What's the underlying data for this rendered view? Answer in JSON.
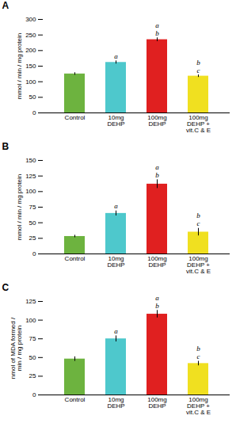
{
  "chart_data": [
    {
      "type": "bar",
      "title": "A",
      "ylabel": "mmol / min / mg protein",
      "categories": [
        "Control",
        "10mg\nDEHP",
        "100mg\nDEHP",
        "100mg\nDEHP +\nvit.C & E"
      ],
      "values": [
        125,
        162,
        235,
        118
      ],
      "errors": [
        4,
        5,
        6,
        4
      ],
      "annotations": [
        [],
        [
          "a"
        ],
        [
          "a",
          "b"
        ],
        [
          "b",
          "c"
        ]
      ],
      "colors": [
        "#6db33f",
        "#4ec8cc",
        "#e02020",
        "#f0e020"
      ],
      "ylim": [
        0,
        300
      ],
      "yticks": [
        0,
        50,
        100,
        150,
        200,
        250,
        300
      ],
      "grid": false
    },
    {
      "type": "bar",
      "title": "B",
      "ylabel": "mmol / min / mg protein",
      "categories": [
        "Control",
        "10mg\nDEHP",
        "100mg\nDEHP",
        "100mg\nDEHP +\nvit.C & E"
      ],
      "values": [
        28,
        65,
        112,
        35
      ],
      "errors": [
        2,
        4,
        7,
        6
      ],
      "annotations": [
        [],
        [
          "a"
        ],
        [
          "a",
          "b"
        ],
        [
          "b",
          "c"
        ]
      ],
      "colors": [
        "#6db33f",
        "#4ec8cc",
        "#e02020",
        "#f0e020"
      ],
      "ylim": [
        0,
        150
      ],
      "yticks": [
        0,
        25,
        50,
        75,
        100,
        125,
        150
      ],
      "grid": false
    },
    {
      "type": "bar",
      "title": "C",
      "ylabel": "nmol of MDA formed /\nmin / mg protein",
      "categories": [
        "Control",
        "10mg\nDEHP",
        "100mg\nDEHP",
        "100mg\nDEHP +\nvit.C & E"
      ],
      "values": [
        48,
        75,
        108,
        42
      ],
      "errors": [
        3,
        4,
        5,
        3
      ],
      "annotations": [
        [],
        [
          "a"
        ],
        [
          "a",
          "b"
        ],
        [
          "b",
          "c"
        ]
      ],
      "colors": [
        "#6db33f",
        "#4ec8cc",
        "#e02020",
        "#f0e020"
      ],
      "ylim": [
        0,
        125
      ],
      "yticks": [
        0,
        25,
        50,
        75,
        100,
        125
      ],
      "grid": false
    }
  ]
}
